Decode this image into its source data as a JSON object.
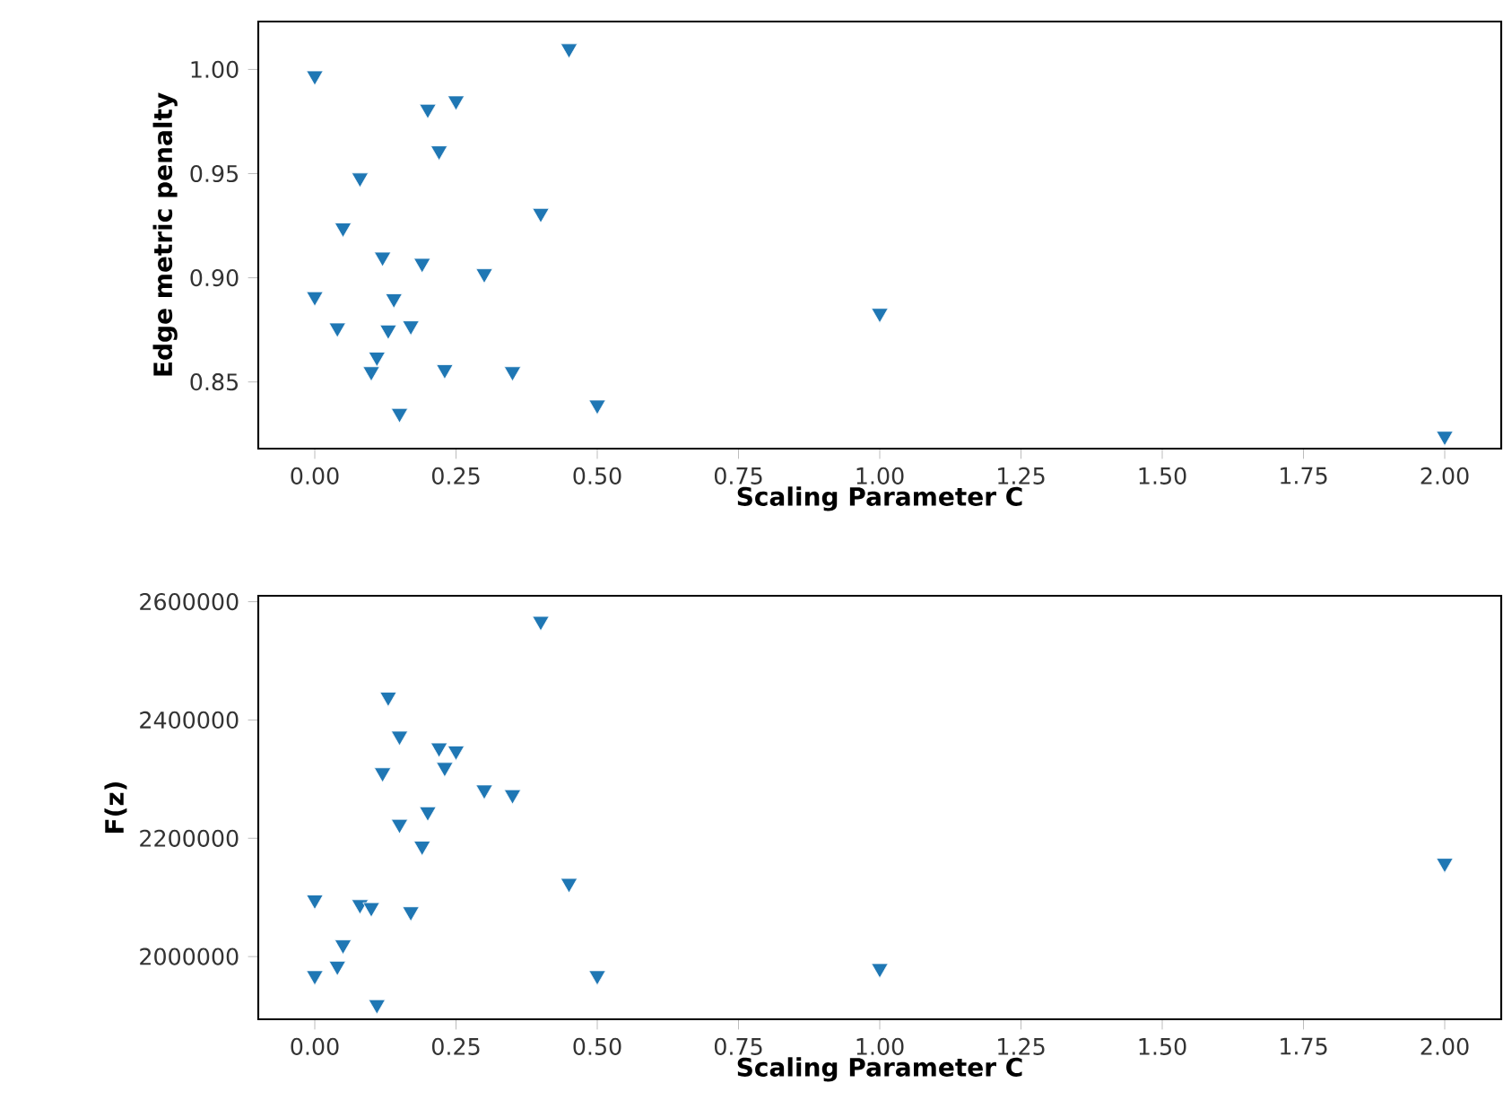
{
  "chart_data": [
    {
      "type": "scatter",
      "xlabel": "Scaling Parameter C",
      "ylabel": "Edge metric penalty",
      "color": "#1f77b4",
      "marker": "triangle",
      "x": [
        0.45,
        0.0,
        0.25,
        0.2,
        0.22,
        0.08,
        0.05,
        0.4,
        0.12,
        0.19,
        0.3,
        0.0,
        0.14,
        0.04,
        0.13,
        0.17,
        0.11,
        0.1,
        0.23,
        0.35,
        0.15,
        0.5,
        1.0,
        2.0
      ],
      "values": [
        1.01,
        0.997,
        0.985,
        0.981,
        0.961,
        0.948,
        0.924,
        0.931,
        0.91,
        0.907,
        0.902,
        0.891,
        0.89,
        0.876,
        0.875,
        0.877,
        0.862,
        0.855,
        0.856,
        0.855,
        0.835,
        0.839,
        0.883,
        0.824
      ],
      "xlim": [
        -0.1,
        2.1
      ],
      "ylim": [
        0.818,
        1.023
      ],
      "xticks": [
        {
          "value": 0,
          "label": "0.00"
        },
        {
          "value": 0.25,
          "label": "0.25"
        },
        {
          "value": 0.5,
          "label": "0.50"
        },
        {
          "value": 0.75,
          "label": "0.75"
        },
        {
          "value": 1,
          "label": "1.00"
        },
        {
          "value": 1.25,
          "label": "1.25"
        },
        {
          "value": 1.5,
          "label": "1.50"
        },
        {
          "value": 1.75,
          "label": "1.75"
        },
        {
          "value": 2,
          "label": "2.00"
        }
      ],
      "yticks": [
        {
          "value": 0.85,
          "label": "0.85"
        },
        {
          "value": 0.9,
          "label": "0.90"
        },
        {
          "value": 0.95,
          "label": "0.95"
        },
        {
          "value": 1,
          "label": "1.00"
        }
      ]
    },
    {
      "type": "scatter",
      "xlabel": "Scaling Parameter C",
      "ylabel": "F(z)",
      "color": "#1f77b4",
      "marker": "triangle",
      "x": [
        0.4,
        0.13,
        0.15,
        0.22,
        0.25,
        0.23,
        0.12,
        0.3,
        0.35,
        0.2,
        0.15,
        0.19,
        0.45,
        0.0,
        0.08,
        0.1,
        0.17,
        0.05,
        0.04,
        0.0,
        0.11,
        0.5,
        1.0,
        2.0
      ],
      "values": [
        2567000,
        2439000,
        2373000,
        2353000,
        2348000,
        2320000,
        2311000,
        2282000,
        2274000,
        2245000,
        2224000,
        2187000,
        2124000,
        2096000,
        2088000,
        2083000,
        2076000,
        2020000,
        1984000,
        1968000,
        1919000,
        1968000,
        1980000,
        2158000
      ],
      "xlim": [
        -0.1,
        2.1
      ],
      "ylim": [
        1894000,
        2610000
      ],
      "xticks": [
        {
          "value": 0,
          "label": "0.00"
        },
        {
          "value": 0.25,
          "label": "0.25"
        },
        {
          "value": 0.5,
          "label": "0.50"
        },
        {
          "value": 0.75,
          "label": "0.75"
        },
        {
          "value": 1,
          "label": "1.00"
        },
        {
          "value": 1.25,
          "label": "1.25"
        },
        {
          "value": 1.5,
          "label": "1.50"
        },
        {
          "value": 1.75,
          "label": "1.75"
        },
        {
          "value": 2,
          "label": "2.00"
        }
      ],
      "yticks": [
        2000000,
        2200000,
        2400000,
        2600000
      ]
    }
  ]
}
